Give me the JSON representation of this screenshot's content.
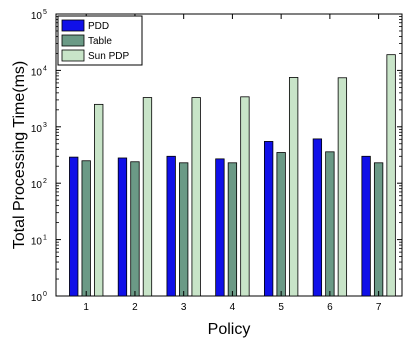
{
  "chart_data": {
    "type": "bar",
    "xlabel": "Policy",
    "ylabel": "Total Processing Time(ms)",
    "y_scale": "log",
    "ylim": [
      1,
      100000
    ],
    "y_ticks": [
      {
        "value": 1,
        "base": "10",
        "exp": "0"
      },
      {
        "value": 10,
        "base": "10",
        "exp": "1"
      },
      {
        "value": 100,
        "base": "10",
        "exp": "2"
      },
      {
        "value": 1000,
        "base": "10",
        "exp": "3"
      },
      {
        "value": 10000,
        "base": "10",
        "exp": "4"
      },
      {
        "value": 100000,
        "base": "10",
        "exp": "5"
      }
    ],
    "categories": [
      "1",
      "2",
      "3",
      "4",
      "5",
      "6",
      "7"
    ],
    "grid": false,
    "legend_position": "top-left",
    "series": [
      {
        "name": "PDD",
        "color": "#1010e8",
        "values": [
          290,
          280,
          300,
          270,
          550,
          610,
          300
        ]
      },
      {
        "name": "Table",
        "color": "#6b9a86",
        "values": [
          250,
          240,
          230,
          230,
          350,
          360,
          230
        ]
      },
      {
        "name": "Sun PDP",
        "color": "#c8e4c8",
        "values": [
          2500,
          3300,
          3300,
          3400,
          7500,
          7400,
          19000
        ]
      }
    ]
  }
}
